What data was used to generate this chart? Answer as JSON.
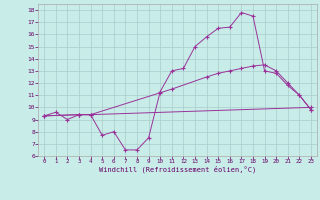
{
  "xlabel": "Windchill (Refroidissement éolien,°C)",
  "bg_color": "#c8ece8",
  "line_color": "#993399",
  "grid_color": "#aacccc",
  "xlim": [
    -0.5,
    23.5
  ],
  "ylim": [
    6,
    18.5
  ],
  "xticks": [
    0,
    1,
    2,
    3,
    4,
    5,
    6,
    7,
    8,
    9,
    10,
    11,
    12,
    13,
    14,
    15,
    16,
    17,
    18,
    19,
    20,
    21,
    22,
    23
  ],
  "yticks": [
    6,
    7,
    8,
    9,
    10,
    11,
    12,
    13,
    14,
    15,
    16,
    17,
    18
  ],
  "line1_x": [
    0,
    1,
    2,
    3,
    4,
    5,
    6,
    7,
    8,
    9,
    10,
    11,
    12,
    13,
    14,
    15,
    16,
    17,
    18,
    19,
    20,
    21,
    22,
    23
  ],
  "line1_y": [
    9.3,
    9.6,
    9.0,
    9.4,
    9.4,
    7.7,
    8.0,
    6.5,
    6.5,
    7.5,
    11.3,
    13.0,
    13.2,
    15.0,
    15.8,
    16.5,
    16.6,
    17.8,
    17.5,
    13.0,
    12.8,
    11.8,
    11.0,
    9.8
  ],
  "line2_x": [
    0,
    3,
    4,
    10,
    11,
    14,
    15,
    16,
    17,
    18,
    19,
    20,
    21,
    22,
    23
  ],
  "line2_y": [
    9.3,
    9.4,
    9.4,
    11.2,
    11.5,
    12.5,
    12.8,
    13.0,
    13.2,
    13.4,
    13.5,
    13.0,
    12.0,
    11.0,
    9.8
  ],
  "line3_x": [
    0,
    3,
    4,
    23
  ],
  "line3_y": [
    9.3,
    9.4,
    9.4,
    10.0
  ],
  "marker": "+"
}
